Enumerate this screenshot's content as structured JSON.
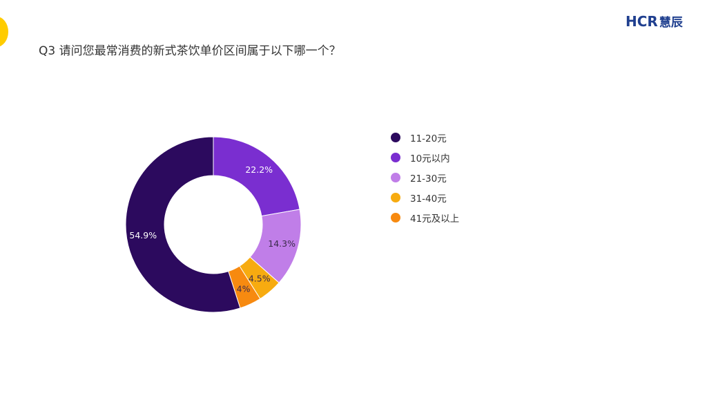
{
  "logo": {
    "latin": "HCR",
    "cjk": "慧辰"
  },
  "question": "Q3 请问您最常消费的新式茶饮单价区间属于以下哪一个？",
  "chart_data": {
    "type": "pie",
    "donut": true,
    "legend_position": "right",
    "slices": [
      {
        "label": "10元以内",
        "value": 22.2,
        "display": "22.2%",
        "color": "#7a2ed0"
      },
      {
        "label": "21-30元",
        "value": 14.3,
        "display": "14.3%",
        "color": "#c07ee8"
      },
      {
        "label": "31-40元",
        "value": 4.5,
        "display": "4.5%",
        "color": "#f7ab10"
      },
      {
        "label": "41元及以上",
        "value": 4.0,
        "display": "4%",
        "color": "#f78a10"
      },
      {
        "label": "11-20元",
        "value": 54.9,
        "display": "54.9%",
        "color": "#2c0a5e"
      }
    ],
    "legend_order": [
      "11-20元",
      "10元以内",
      "21-30元",
      "31-40元",
      "41元及以上"
    ]
  }
}
